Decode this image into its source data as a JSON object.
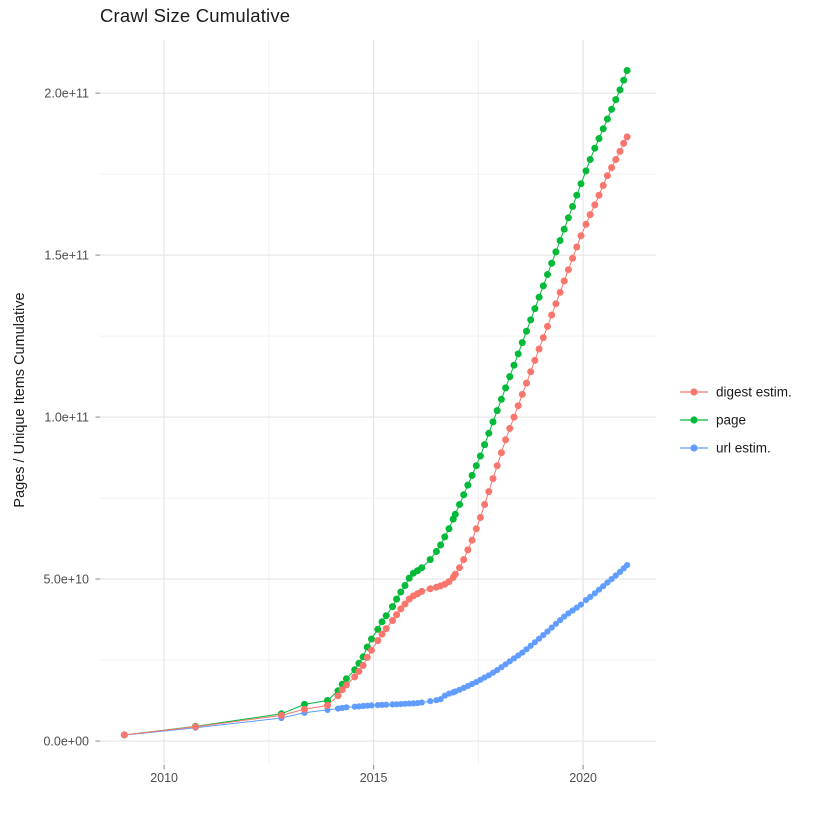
{
  "title": "Crawl Size Cumulative",
  "chart_data": {
    "type": "scatter",
    "title": "Crawl Size Cumulative",
    "xlabel": "",
    "ylabel": "Pages / Unique Items Cumulative",
    "legend_position": "right",
    "grid": true,
    "x_ticks": [
      2010,
      2015,
      2020
    ],
    "x_minor_ticks": [
      2012.5,
      2017.5
    ],
    "y_ticks_e9": [
      0,
      50,
      100,
      150,
      200
    ],
    "y_minor_ticks_e9": [
      25,
      75,
      125,
      175
    ],
    "y_tick_labels": [
      "0.0e+00",
      "5.0e+10",
      "1.0e+11",
      "1.5e+11",
      "2.0e+11"
    ],
    "xlim": [
      2008.47,
      2021.74
    ],
    "ylim_e9": [
      -7.4,
      216.4
    ],
    "value_unit": "1e9 items (values_e9 are billions)",
    "x": [
      2009.05,
      2010.75,
      2012.8,
      2013.35,
      2013.9,
      2014.15,
      2014.25,
      2014.35,
      2014.55,
      2014.65,
      2014.75,
      2014.85,
      2014.95,
      2015.1,
      2015.2,
      2015.3,
      2015.45,
      2015.55,
      2015.65,
      2015.75,
      2015.85,
      2015.95,
      2016.05,
      2016.15,
      2016.35,
      2016.5,
      2016.6,
      2016.7,
      2016.8,
      2016.9,
      2016.95,
      2017.05,
      2017.15,
      2017.25,
      2017.35,
      2017.45,
      2017.55,
      2017.65,
      2017.75,
      2017.85,
      2017.95,
      2018.05,
      2018.15,
      2018.25,
      2018.35,
      2018.45,
      2018.55,
      2018.65,
      2018.75,
      2018.85,
      2018.95,
      2019.05,
      2019.15,
      2019.25,
      2019.35,
      2019.45,
      2019.55,
      2019.65,
      2019.75,
      2019.85,
      2019.95,
      2020.07,
      2020.17,
      2020.28,
      2020.38,
      2020.48,
      2020.58,
      2020.68,
      2020.78,
      2020.88,
      2020.97,
      2021.05
    ],
    "series": [
      {
        "name": "digest estim.",
        "color": "#F8766D",
        "values_e9": [
          1.9,
          4.4,
          7.9,
          9.8,
          11.0,
          14.0,
          15.8,
          17.3,
          19.8,
          21.5,
          23.3,
          25.8,
          28.0,
          31.0,
          33.0,
          34.7,
          37.2,
          39.0,
          40.8,
          42.3,
          43.8,
          44.8,
          45.5,
          46.2,
          47.0,
          47.5,
          47.9,
          48.4,
          49.2,
          50.5,
          51.5,
          53.5,
          56.0,
          59.0,
          62.0,
          65.5,
          69.0,
          73.0,
          77.0,
          81.0,
          85.0,
          89.0,
          93.0,
          96.5,
          100.0,
          103.5,
          107.0,
          110.5,
          114.0,
          117.5,
          121.0,
          124.5,
          128.0,
          131.5,
          135.0,
          138.5,
          142.0,
          145.5,
          149.0,
          152.5,
          156.0,
          159.5,
          162.5,
          165.5,
          168.5,
          171.5,
          174.5,
          177.0,
          179.5,
          182.0,
          184.5,
          186.5
        ]
      },
      {
        "name": "page",
        "color": "#00BA38",
        "values_e9": [
          1.9,
          4.5,
          8.4,
          11.3,
          12.5,
          15.5,
          17.5,
          19.2,
          22.0,
          24.0,
          26.0,
          29.0,
          31.5,
          34.5,
          36.8,
          38.7,
          41.5,
          43.8,
          46.0,
          48.0,
          50.3,
          51.8,
          52.6,
          53.5,
          56.0,
          58.5,
          60.5,
          63.0,
          65.5,
          68.5,
          70.0,
          73.0,
          76.0,
          79.0,
          82.0,
          85.0,
          88.0,
          91.5,
          95.0,
          98.5,
          102.0,
          105.5,
          109.0,
          112.5,
          116.0,
          119.5,
          123.0,
          126.5,
          130.0,
          133.5,
          137.0,
          140.5,
          144.0,
          147.5,
          151.0,
          154.5,
          158.0,
          161.5,
          165.0,
          168.5,
          172.0,
          176.0,
          179.5,
          183.0,
          186.0,
          189.0,
          192.0,
          195.0,
          198.0,
          201.0,
          204.0,
          207.0
        ]
      },
      {
        "name": "url estim.",
        "color": "#619CFF",
        "values_e9": [
          1.8,
          4.1,
          7.1,
          8.7,
          9.6,
          10.0,
          10.2,
          10.4,
          10.6,
          10.7,
          10.8,
          10.9,
          11.0,
          11.1,
          11.15,
          11.2,
          11.3,
          11.35,
          11.4,
          11.5,
          11.55,
          11.6,
          11.7,
          11.9,
          12.3,
          12.6,
          12.9,
          14.0,
          14.6,
          15.0,
          15.3,
          15.8,
          16.4,
          17.0,
          17.6,
          18.2,
          18.9,
          19.6,
          20.3,
          21.1,
          21.9,
          22.8,
          23.7,
          24.6,
          25.5,
          26.4,
          27.3,
          28.3,
          29.4,
          30.5,
          31.6,
          32.7,
          33.8,
          35.0,
          36.2,
          37.3,
          38.4,
          39.4,
          40.3,
          41.2,
          42.1,
          43.5,
          44.5,
          45.6,
          46.7,
          47.8,
          48.9,
          50.0,
          51.1,
          52.2,
          53.3,
          54.3
        ]
      }
    ]
  },
  "legend": {
    "items": [
      "digest estim.",
      "page",
      "url estim."
    ]
  },
  "colors": {
    "grid_major": "#e4e4e4",
    "grid_minor": "#f2f2f2",
    "axis_text": "#4d4d4d",
    "tick_mark": "#888888",
    "title_text": "#1c1c1c"
  }
}
